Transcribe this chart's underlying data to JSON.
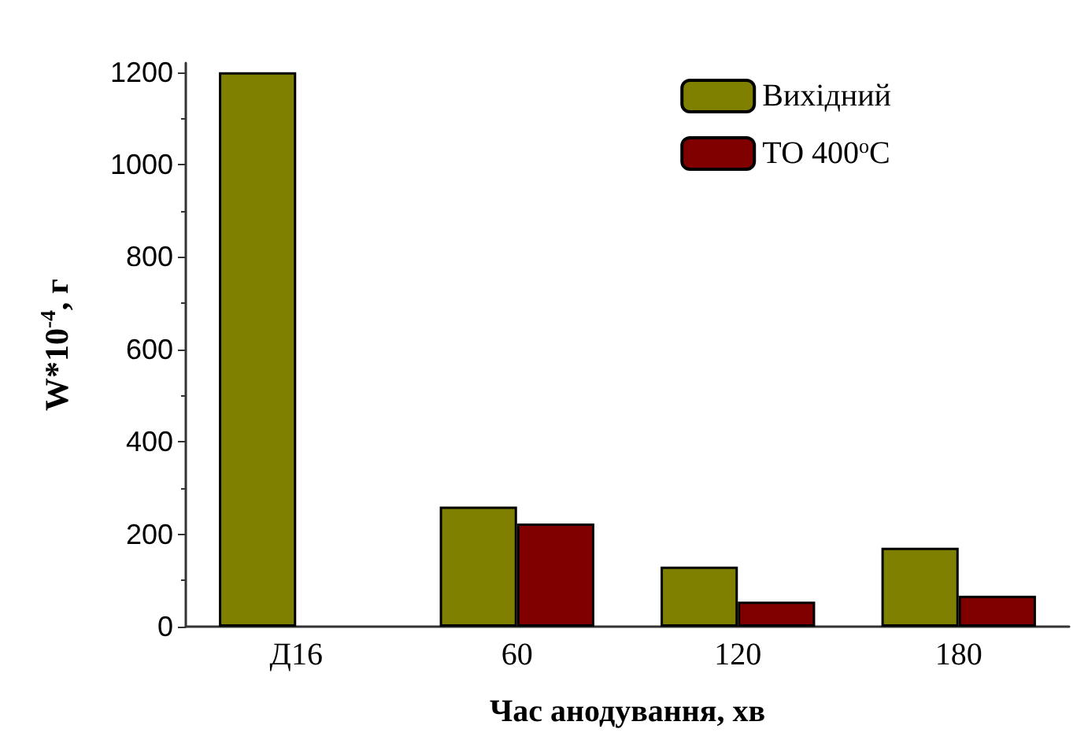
{
  "chart_data": {
    "type": "bar",
    "xlabel": "Час анодування, хв",
    "ylabel": "W*10$^{-4}$, г",
    "categories": [
      "Д16",
      "60",
      "120",
      "180"
    ],
    "series": [
      {
        "name": "Вихідний",
        "color": "#808000",
        "values": [
          1200,
          260,
          130,
          171
        ]
      },
      {
        "name": "ТО 400$^{o}$C",
        "color": "#800000",
        "values": [
          null,
          223,
          54,
          67
        ]
      }
    ],
    "ylim": [
      0,
      1220
    ],
    "yticks": [
      0,
      200,
      400,
      600,
      800,
      1000,
      1200
    ],
    "grid": false,
    "legend": "top right"
  }
}
